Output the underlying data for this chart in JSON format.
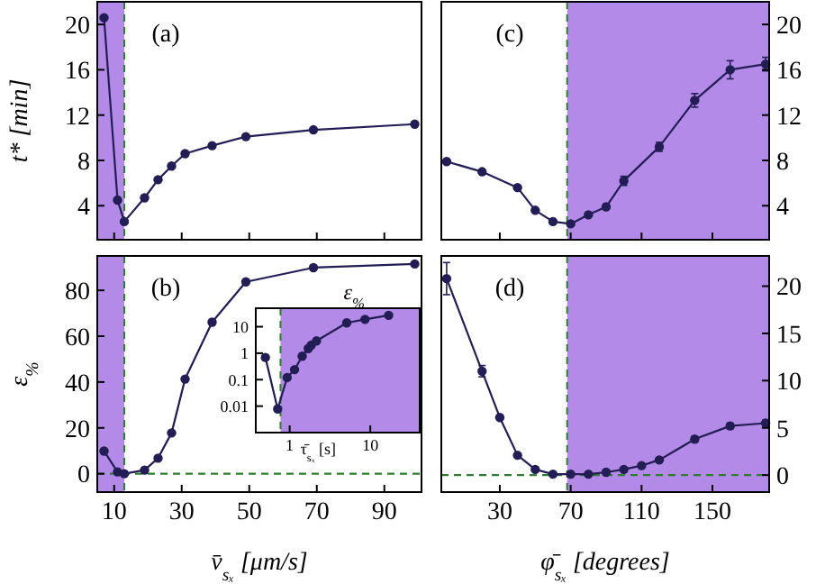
{
  "chart_data": [
    {
      "type": "line",
      "ylabel": "t* [min]",
      "annotations": [
        "(a)"
      ],
      "x": [
        7,
        11,
        13,
        19,
        23,
        27,
        31,
        39,
        49,
        69,
        99
      ],
      "xlim": [
        5,
        101
      ],
      "xticks": [
        10,
        30,
        50,
        70,
        90
      ],
      "ylim": [
        1,
        22
      ],
      "yticks": [
        4,
        8,
        12,
        16,
        20
      ],
      "tick_labels": "y",
      "marker": "circle",
      "line_style": "solid",
      "series": [
        {
          "color": "#231d55",
          "values": [
            20.6,
            4.5,
            2.6,
            4.7,
            6.3,
            7.5,
            8.6,
            9.3,
            10.1,
            10.7,
            11.2
          ]
        }
      ],
      "bands": [
        {
          "axis": "x",
          "from": 5,
          "to": 13,
          "color": "#b48ae8"
        }
      ],
      "ref_lines": [
        {
          "axis": "x",
          "value": 13,
          "color": "#2e7d32",
          "line_style": "dashed"
        }
      ]
    },
    {
      "type": "line",
      "annotations": [
        "(c)"
      ],
      "x": [
        0,
        20,
        40,
        50,
        60,
        70,
        80,
        90,
        100,
        120,
        140,
        160,
        180
      ],
      "xlim": [
        -3,
        182
      ],
      "xticks": [
        30,
        70,
        110,
        150
      ],
      "ylim": [
        1,
        22
      ],
      "yticks": [
        4,
        8,
        12,
        16,
        20
      ],
      "tick_labels": "y",
      "marker": "circle",
      "line_style": "solid",
      "series": [
        {
          "color": "#231d55",
          "values": [
            7.9,
            7.0,
            5.6,
            3.6,
            2.6,
            2.4,
            3.2,
            3.9,
            6.2,
            9.2,
            13.3,
            16.0,
            16.5
          ],
          "errors": [
            null,
            null,
            null,
            null,
            null,
            null,
            null,
            null,
            0.4,
            0.4,
            0.6,
            0.8,
            0.6
          ]
        }
      ],
      "bands": [
        {
          "axis": "x",
          "from": 68,
          "to": 182,
          "color": "#b48ae8"
        }
      ],
      "ref_lines": [
        {
          "axis": "x",
          "value": 68,
          "color": "#2e7d32",
          "line_style": "dashed"
        }
      ]
    },
    {
      "type": "line",
      "ylabel": "ε$_{%}$",
      "xlabel": "v̄$_{sₓ}$ [μm/s]",
      "annotations": [
        "(b)"
      ],
      "x": [
        7,
        11,
        13,
        19,
        23,
        27,
        31,
        39,
        49,
        69,
        99
      ],
      "xlim": [
        5,
        101
      ],
      "xticks": [
        10,
        30,
        50,
        70,
        90
      ],
      "ylim": [
        -8,
        95
      ],
      "yticks": [
        0,
        20,
        40,
        60,
        80
      ],
      "marker": "circle",
      "line_style": "solid",
      "series": [
        {
          "color": "#231d55",
          "values": [
            9.9,
            0.8,
            0,
            1.6,
            6.8,
            17.8,
            41.3,
            66.1,
            83.7,
            89.9,
            91.5
          ]
        }
      ],
      "bands": [
        {
          "axis": "x",
          "from": 5,
          "to": 13,
          "color": "#b48ae8"
        }
      ],
      "ref_lines": [
        {
          "axis": "x",
          "value": 13,
          "color": "#2e7d32",
          "line_style": "dashed"
        },
        {
          "axis": "y",
          "value": 0,
          "color": "#2e7d32",
          "line_style": "dashed"
        }
      ]
    },
    {
      "type": "line",
      "title": "ε$_{%}$",
      "xlabel": "τ̄$_{sₓ}$ [s]",
      "log": "xy",
      "x": [
        0.5,
        0.71,
        0.93,
        1.15,
        1.43,
        1.7,
        1.85,
        2.15,
        5.1,
        8.6,
        16.9
      ],
      "xlim": [
        0.38,
        41
      ],
      "xticks": [
        1,
        10
      ],
      "ylim": [
        0.001,
        50
      ],
      "yticks": [
        0.01,
        0.1,
        1,
        10
      ],
      "marker": "circle",
      "line_style": "solid",
      "series": [
        {
          "color": "#231d55",
          "values": [
            0.69,
            0.0078,
            0.12,
            0.24,
            0.77,
            1.5,
            2.0,
            2.9,
            14,
            19,
            27
          ]
        }
      ],
      "bands": [
        {
          "axis": "x",
          "from": 0.77,
          "to": 41,
          "color": "#b48ae8"
        }
      ],
      "ref_lines": [
        {
          "axis": "x",
          "value": 0.77,
          "color": "#2e7d32",
          "line_style": "dashed"
        }
      ]
    },
    {
      "type": "line",
      "xlabel": "φ̄$_{sₓ}$ [degrees]",
      "annotations": [
        "(d)"
      ],
      "x": [
        0,
        20,
        30,
        40,
        50,
        60,
        70,
        80,
        90,
        100,
        110,
        120,
        140,
        160,
        180
      ],
      "xlim": [
        -3,
        182
      ],
      "xticks": [
        30,
        70,
        110,
        150
      ],
      "ylim": [
        -1.8,
        23.2
      ],
      "yticks": [
        0,
        5,
        10,
        15,
        20
      ],
      "marker": "circle",
      "line_style": "solid",
      "series": [
        {
          "color": "#231d55",
          "values": [
            20.8,
            11.0,
            6.1,
            2.1,
            0.6,
            0.1,
            0.1,
            0.1,
            0.3,
            0.6,
            1.0,
            1.6,
            3.8,
            5.2,
            5.5
          ],
          "errors": [
            1.7,
            0.6,
            null,
            null,
            null,
            null,
            null,
            null,
            null,
            null,
            null,
            null,
            0.3,
            0.3,
            0.3
          ]
        }
      ],
      "bands": [
        {
          "axis": "x",
          "from": 68,
          "to": 182,
          "color": "#b48ae8"
        }
      ],
      "ref_lines": [
        {
          "axis": "x",
          "value": 68,
          "color": "#2e7d32",
          "line_style": "dashed"
        },
        {
          "axis": "y",
          "value": 0,
          "color": "#2e7d32",
          "line_style": "dashed"
        }
      ]
    }
  ]
}
